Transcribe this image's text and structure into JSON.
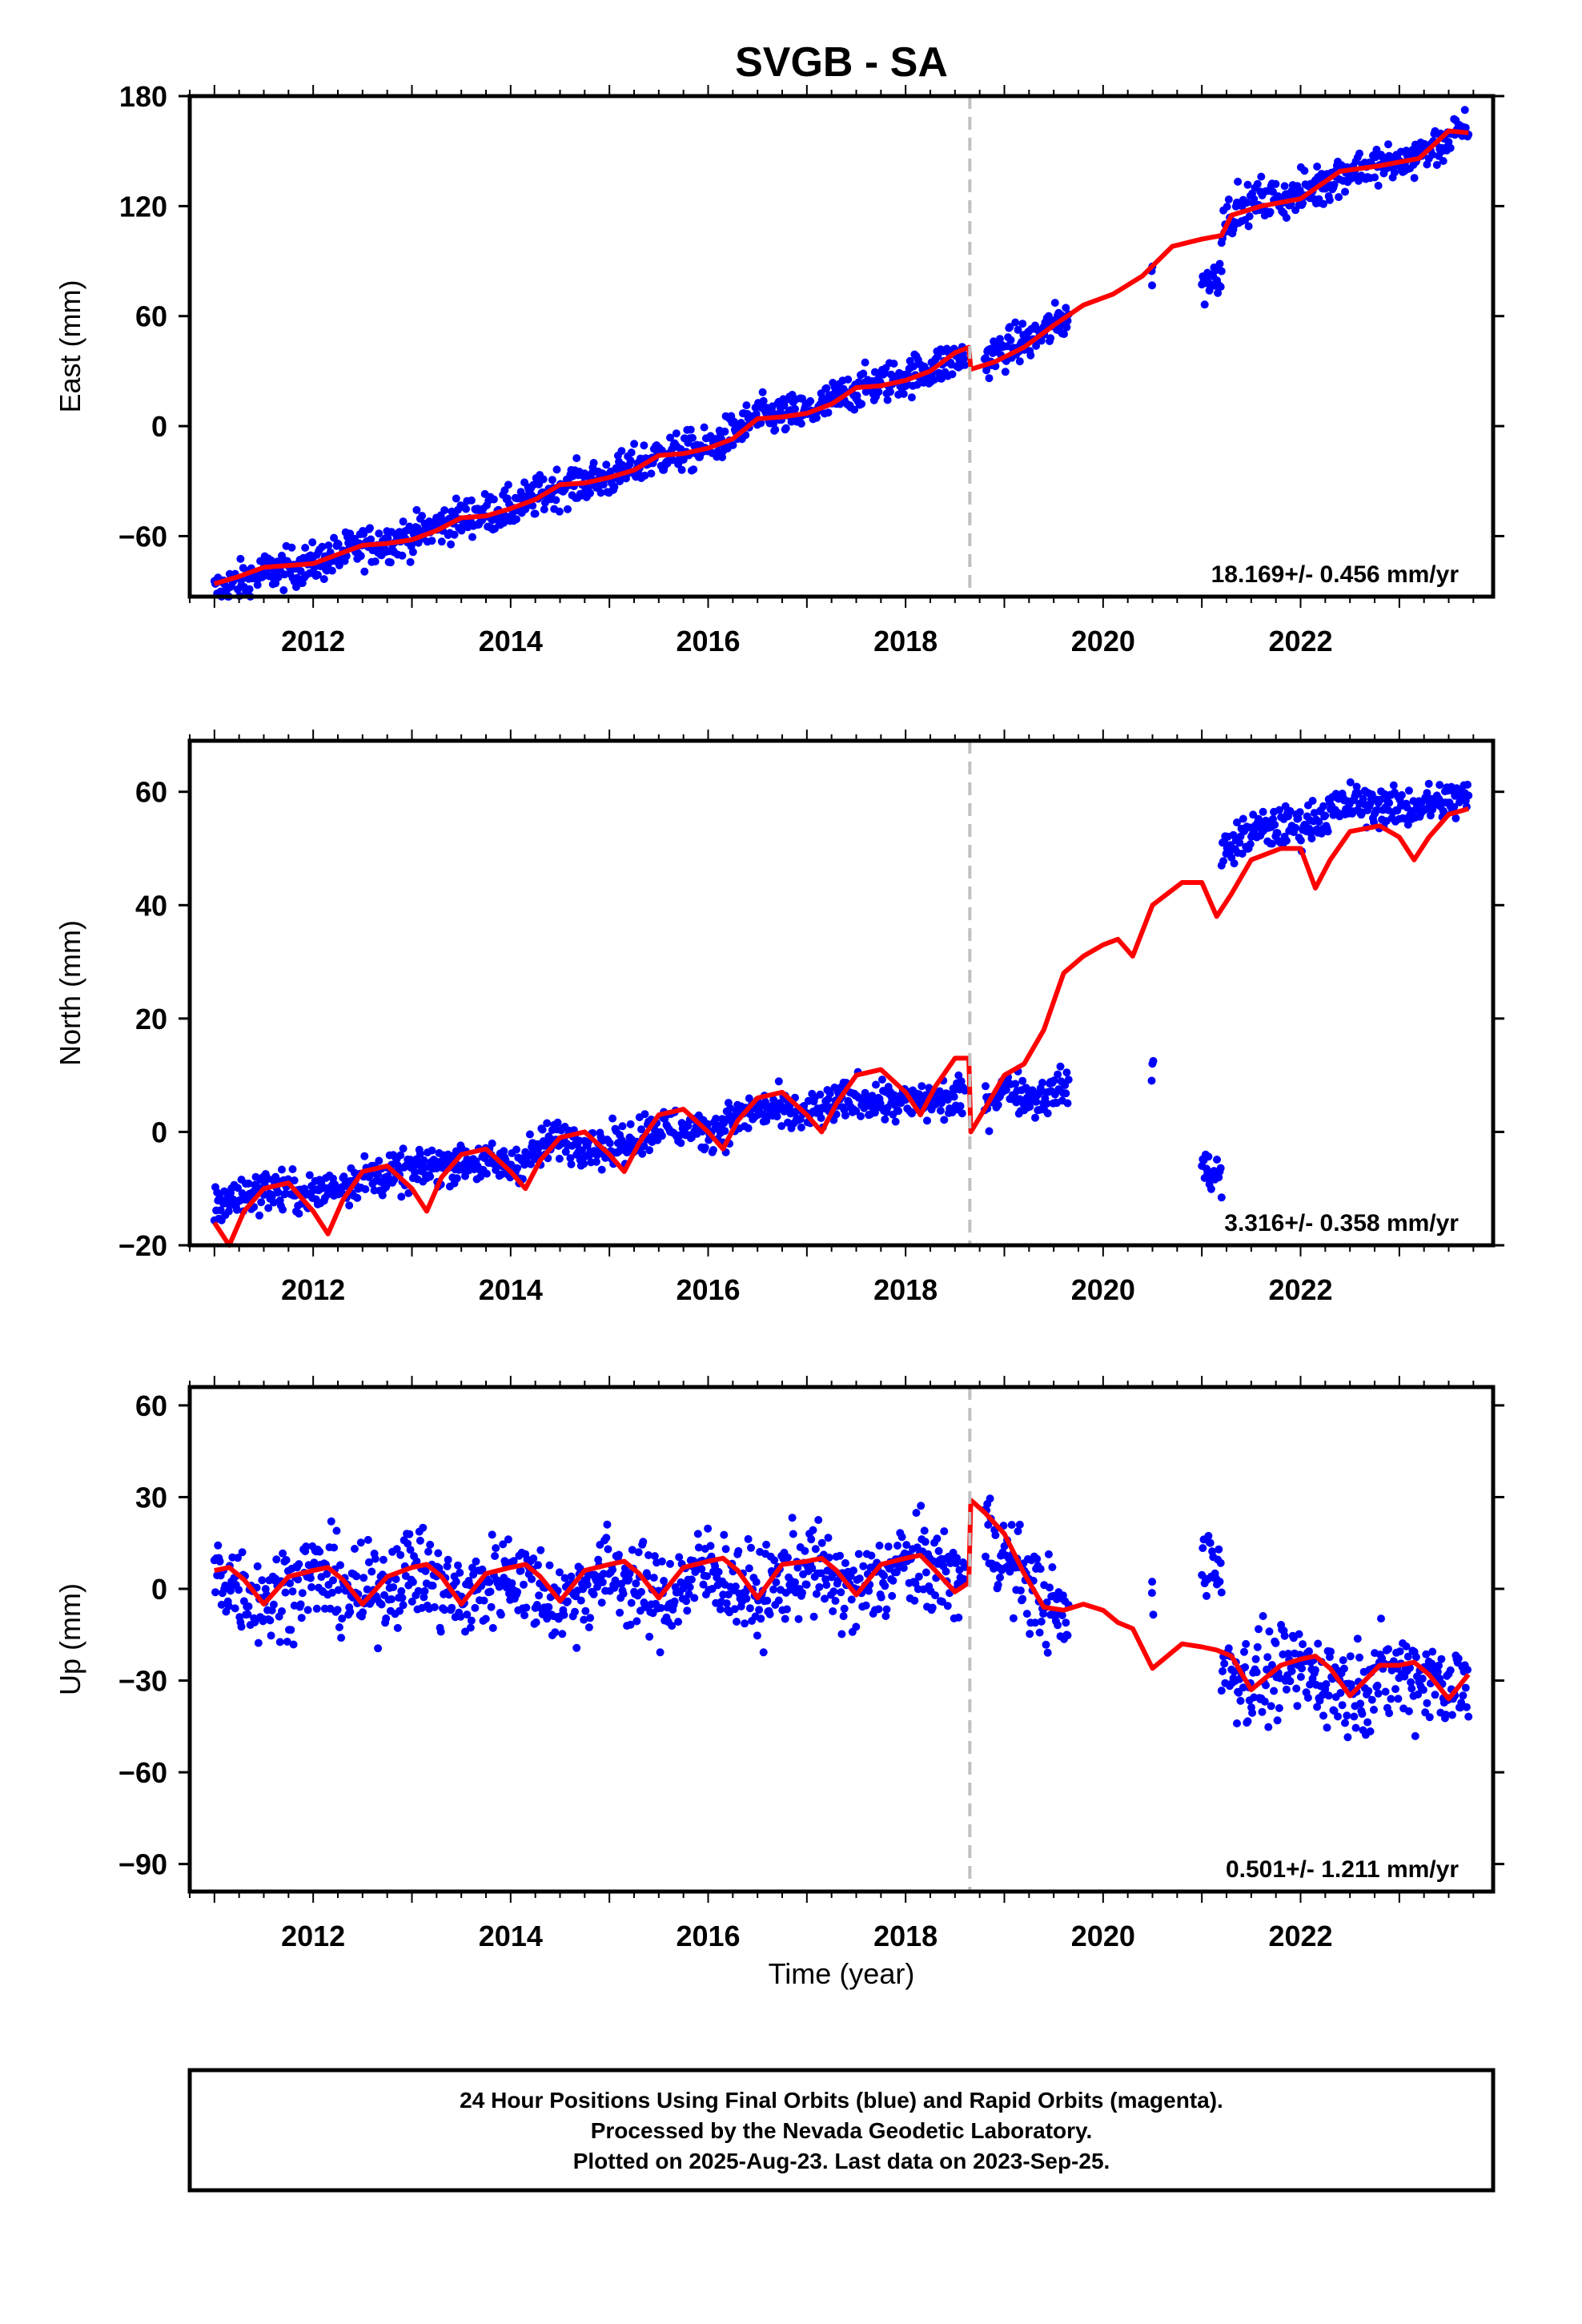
{
  "title": "SVGB - SA",
  "x_tick_labels": [
    "2012",
    "2014",
    "2016",
    "2018",
    "2020",
    "2022"
  ],
  "xlabel": "Time (year)",
  "footnote": [
    "24 Hour Positions Using Final Orbits (blue) and Rapid Orbits (magenta).",
    "Processed by the Nevada Geodetic Laboratory.",
    "Plotted on 2025-Aug-23. Last data on 2023-Sep-25."
  ],
  "colors": {
    "data": "#0000ff",
    "model": "#ff0000",
    "event_line": "#c0c0c0"
  },
  "chart_data": [
    {
      "type": "scatter",
      "ylabel": "East (mm)",
      "ylim": [
        -93,
        180
      ],
      "yticks": [
        180,
        120,
        60,
        0,
        -60
      ],
      "xlim": [
        2010.75,
        2023.95
      ],
      "event_line_x": 2018.65,
      "grid": false,
      "rate_label": "18.169+/- 0.456 mm/yr",
      "data_segments": [
        {
          "x": [
            2011.0,
            2011.5,
            2012.0,
            2012.5,
            2013.0,
            2013.5,
            2014.0,
            2014.5,
            2015.0,
            2015.5,
            2016.0,
            2016.5,
            2017.0,
            2017.5,
            2018.0,
            2018.6
          ],
          "y": [
            -90,
            -80,
            -75,
            -66,
            -60,
            -50,
            -45,
            -33,
            -28,
            -16,
            -12,
            5,
            7,
            20,
            27,
            38
          ]
        },
        {
          "x": [
            2018.8,
            2019.0,
            2019.3,
            2019.65
          ],
          "y": [
            36,
            42,
            48,
            60
          ]
        },
        {
          "x": [
            2020.5
          ],
          "y": [
            80
          ]
        },
        {
          "x": [
            2021.0,
            2021.2
          ],
          "y": [
            78,
            82
          ]
        },
        {
          "x": [
            2021.2,
            2021.5,
            2022.0,
            2022.5,
            2023.0,
            2023.7
          ],
          "y": [
            112,
            122,
            126,
            140,
            143,
            162
          ]
        }
      ],
      "model": {
        "x": [
          2011.0,
          2011.25,
          2011.5,
          2011.75,
          2012.0,
          2012.25,
          2012.5,
          2012.75,
          2013.0,
          2013.25,
          2013.5,
          2013.75,
          2014.0,
          2014.25,
          2014.5,
          2014.75,
          2015.0,
          2015.25,
          2015.5,
          2015.75,
          2016.0,
          2016.25,
          2016.5,
          2016.75,
          2017.0,
          2017.25,
          2017.5,
          2017.75,
          2018.0,
          2018.25,
          2018.5,
          2018.64,
          2018.66,
          2018.9,
          2019.2,
          2019.5,
          2019.8,
          2020.1,
          2020.4,
          2020.7,
          2021.0,
          2021.2,
          2021.3,
          2021.6,
          2022.0,
          2022.4,
          2022.8,
          2023.2,
          2023.5,
          2023.7
        ],
        "y": [
          -86,
          -82,
          -77,
          -76,
          -75,
          -70,
          -65,
          -64,
          -62,
          -57,
          -50,
          -49,
          -45,
          -40,
          -32,
          -31,
          -28,
          -24,
          -16,
          -15,
          -12,
          -7,
          4,
          5,
          7,
          12,
          21,
          22,
          25,
          30,
          40,
          43,
          31,
          35,
          43,
          55,
          66,
          72,
          82,
          98,
          102,
          104,
          115,
          120,
          124,
          139,
          142,
          146,
          161,
          160
        ]
      }
    },
    {
      "type": "scatter",
      "ylabel": "North (mm)",
      "ylim": [
        -20,
        69
      ],
      "yticks": [
        60,
        40,
        20,
        0,
        -20
      ],
      "xlim": [
        2010.75,
        2023.95
      ],
      "event_line_x": 2018.65,
      "grid": false,
      "rate_label": "3.316+/- 0.358 mm/yr",
      "data_segments": [
        {
          "x": [
            2011.0,
            2011.5,
            2012.0,
            2012.5,
            2013.0,
            2013.5,
            2014.0,
            2014.5,
            2015.0,
            2015.5,
            2016.0,
            2016.5,
            2017.0,
            2017.5,
            2018.0,
            2018.6
          ],
          "y": [
            -13,
            -10,
            -11,
            -8,
            -7,
            -5,
            -6,
            -1,
            -3,
            1,
            0,
            4,
            3,
            6,
            5,
            6
          ]
        },
        {
          "x": [
            2018.8,
            2019.0,
            2019.3,
            2019.65
          ],
          "y": [
            5,
            8,
            6,
            8
          ]
        },
        {
          "x": [
            2020.5
          ],
          "y": [
            12
          ]
        },
        {
          "x": [
            2021.0,
            2021.2
          ],
          "y": [
            -6,
            -8
          ]
        },
        {
          "x": [
            2021.2,
            2021.5,
            2022.0,
            2022.5,
            2023.0,
            2023.7
          ],
          "y": [
            49,
            53,
            54,
            58,
            57,
            59
          ]
        }
      ],
      "model": {
        "x": [
          2011.0,
          2011.15,
          2011.3,
          2011.5,
          2011.75,
          2012.0,
          2012.15,
          2012.3,
          2012.5,
          2012.75,
          2013.0,
          2013.15,
          2013.3,
          2013.5,
          2013.75,
          2014.0,
          2014.15,
          2014.3,
          2014.5,
          2014.75,
          2015.0,
          2015.15,
          2015.3,
          2015.5,
          2015.75,
          2016.0,
          2016.15,
          2016.3,
          2016.5,
          2016.75,
          2017.0,
          2017.15,
          2017.3,
          2017.5,
          2017.75,
          2018.0,
          2018.15,
          2018.3,
          2018.5,
          2018.64,
          2018.66,
          2018.8,
          2019.0,
          2019.2,
          2019.4,
          2019.6,
          2019.8,
          2020.0,
          2020.15,
          2020.3,
          2020.5,
          2020.8,
          2021.0,
          2021.15,
          2021.3,
          2021.5,
          2021.8,
          2022.0,
          2022.15,
          2022.3,
          2022.5,
          2022.8,
          2023.0,
          2023.15,
          2023.3,
          2023.5,
          2023.7
        ],
        "y": [
          -16,
          -20,
          -14,
          -10,
          -9,
          -14,
          -18,
          -12,
          -7,
          -6,
          -10,
          -14,
          -8,
          -4,
          -3,
          -7,
          -10,
          -5,
          -1,
          0,
          -4,
          -7,
          -2,
          3,
          4,
          0,
          -3,
          2,
          6,
          7,
          3,
          0,
          5,
          10,
          11,
          7,
          3,
          8,
          13,
          13,
          0,
          4,
          10,
          12,
          18,
          28,
          31,
          33,
          34,
          31,
          40,
          44,
          44,
          38,
          42,
          48,
          50,
          50,
          43,
          48,
          53,
          54,
          52,
          48,
          52,
          56,
          57
        ]
      }
    },
    {
      "type": "scatter",
      "ylabel": "Up (mm)",
      "ylim": [
        -99,
        66
      ],
      "yticks": [
        60,
        30,
        0,
        -30,
        -60,
        -90
      ],
      "xlim": [
        2010.75,
        2023.95
      ],
      "event_line_x": 2018.65,
      "grid": false,
      "rate_label": "0.501+/- 1.211 mm/yr",
      "data_segments": [
        {
          "x": [
            2011.0,
            2011.5,
            2012.0,
            2012.5,
            2013.0,
            2013.5,
            2014.0,
            2014.5,
            2015.0,
            2015.5,
            2016.0,
            2016.5,
            2017.0,
            2017.5,
            2018.0,
            2018.6
          ],
          "y": [
            6,
            -4,
            5,
            -3,
            7,
            -4,
            6,
            -5,
            6,
            -4,
            7,
            -3,
            8,
            -2,
            9,
            3
          ]
        },
        {
          "x": [
            2018.8,
            2019.0,
            2019.3,
            2019.65
          ],
          "y": [
            20,
            10,
            0,
            -12
          ]
        },
        {
          "x": [
            2020.5
          ],
          "y": [
            -5
          ]
        },
        {
          "x": [
            2021.0,
            2021.2
          ],
          "y": [
            10,
            8
          ]
        },
        {
          "x": [
            2021.2,
            2021.5,
            2022.0,
            2022.5,
            2023.0,
            2023.7
          ],
          "y": [
            -25,
            -30,
            -26,
            -33,
            -27,
            -32
          ]
        }
      ],
      "model": {
        "x": [
          2011.0,
          2011.15,
          2011.3,
          2011.5,
          2011.75,
          2012.0,
          2012.15,
          2012.3,
          2012.5,
          2012.75,
          2013.0,
          2013.15,
          2013.3,
          2013.5,
          2013.75,
          2014.0,
          2014.15,
          2014.3,
          2014.5,
          2014.75,
          2015.0,
          2015.15,
          2015.3,
          2015.5,
          2015.75,
          2016.0,
          2016.15,
          2016.3,
          2016.5,
          2016.75,
          2017.0,
          2017.15,
          2017.3,
          2017.5,
          2017.75,
          2018.0,
          2018.15,
          2018.3,
          2018.5,
          2018.64,
          2018.66,
          2018.8,
          2019.0,
          2019.2,
          2019.4,
          2019.6,
          2019.8,
          2020.0,
          2020.15,
          2020.3,
          2020.5,
          2020.8,
          2021.0,
          2021.15,
          2021.3,
          2021.5,
          2021.8,
          2022.0,
          2022.15,
          2022.3,
          2022.5,
          2022.8,
          2023.0,
          2023.15,
          2023.3,
          2023.5,
          2023.7
        ],
        "y": [
          6,
          7,
          3,
          -5,
          4,
          6,
          7,
          3,
          -5,
          4,
          7,
          8,
          4,
          -5,
          5,
          7,
          8,
          4,
          -4,
          6,
          8,
          9,
          5,
          -3,
          7,
          9,
          10,
          6,
          -3,
          8,
          9,
          10,
          6,
          -2,
          8,
          10,
          11,
          6,
          -1,
          2,
          29,
          25,
          18,
          5,
          -6,
          -7,
          -5,
          -7,
          -11,
          -13,
          -26,
          -18,
          -19,
          -20,
          -22,
          -33,
          -25,
          -23,
          -22,
          -26,
          -35,
          -25,
          -25,
          -24,
          -28,
          -36,
          -28
        ]
      }
    }
  ]
}
